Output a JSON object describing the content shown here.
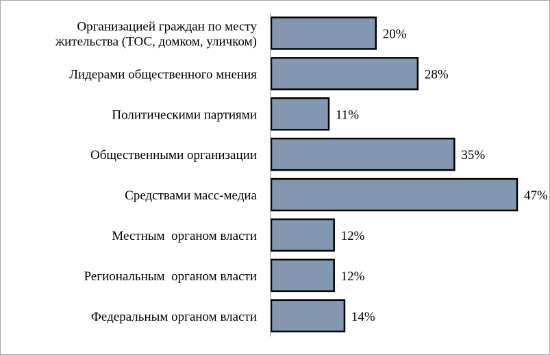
{
  "chart_data": {
    "type": "bar",
    "orientation": "horizontal",
    "categories": [
      [
        "Организацией граждан по месту",
        "жительства (ТОС, домком, уличком)"
      ],
      [
        "Лидерами общественного мнения"
      ],
      [
        "Политическими партиями"
      ],
      [
        "Общественными организации"
      ],
      [
        "Средствами масс-медиа"
      ],
      [
        "Местным  органом власти"
      ],
      [
        "Региональным  органом власти"
      ],
      [
        "Федеральным органом власти"
      ]
    ],
    "values": [
      20,
      28,
      11,
      35,
      47,
      12,
      12,
      14
    ],
    "value_labels": [
      "20%",
      "28%",
      "11%",
      "35%",
      "47%",
      "12%",
      "12%",
      "14%"
    ],
    "unit": "%",
    "xlim": [
      0,
      47
    ],
    "title": "",
    "xlabel": "",
    "ylabel": "",
    "grid": false,
    "legend": "none",
    "colors": {
      "bar_fill": "#8497b0",
      "bar_stroke": "#000000",
      "axis": "#7f7f7f",
      "frame": "#a6a6a6"
    }
  }
}
